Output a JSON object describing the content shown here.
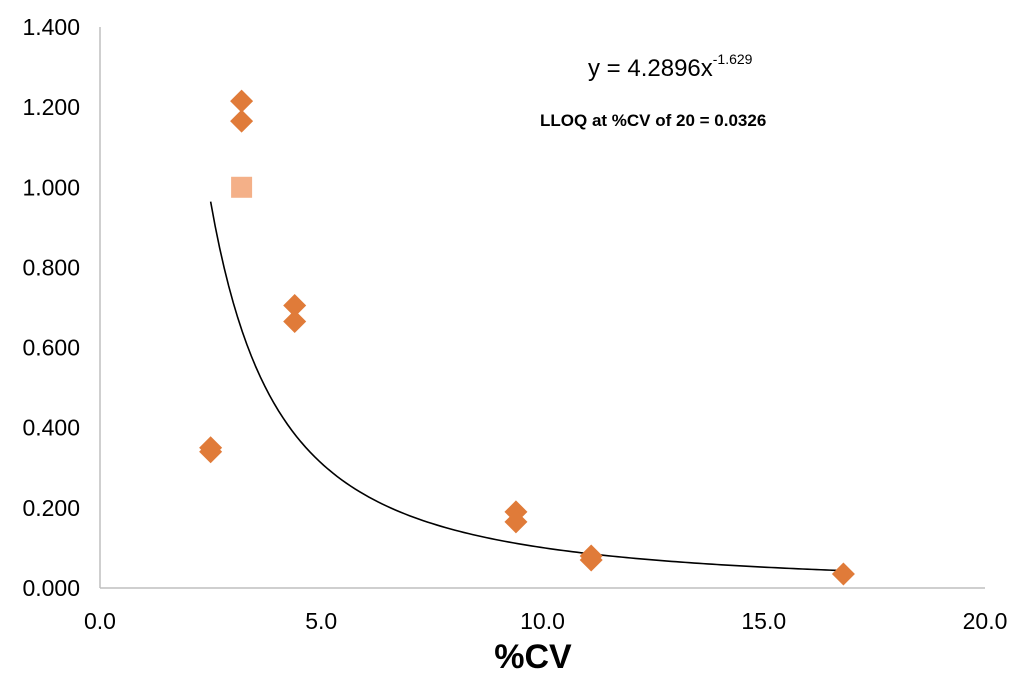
{
  "chart_data": {
    "type": "scatter",
    "title": "",
    "xlabel": "%CV",
    "ylabel": "",
    "xlim": [
      0,
      20
    ],
    "ylim": [
      0,
      1.4
    ],
    "x_ticks": [
      "0.0",
      "5.0",
      "10.0",
      "15.0",
      "20.0"
    ],
    "y_ticks": [
      "0.000",
      "0.200",
      "0.400",
      "0.600",
      "0.800",
      "1.000",
      "1.200",
      "1.400"
    ],
    "grid": false,
    "series": [
      {
        "marker": "diamond",
        "color": "#e07b39",
        "points": [
          {
            "x": 2.5,
            "y": 0.35
          },
          {
            "x": 2.5,
            "y": 0.34
          },
          {
            "x": 3.2,
            "y": 1.215
          },
          {
            "x": 3.2,
            "y": 1.165
          },
          {
            "x": 4.4,
            "y": 0.705
          },
          {
            "x": 4.4,
            "y": 0.665
          },
          {
            "x": 9.4,
            "y": 0.19
          },
          {
            "x": 9.4,
            "y": 0.165
          },
          {
            "x": 11.1,
            "y": 0.08
          },
          {
            "x": 11.1,
            "y": 0.07
          },
          {
            "x": 16.8,
            "y": 0.035
          }
        ]
      },
      {
        "marker": "square",
        "color": "#f4b088",
        "points": [
          {
            "x": 3.2,
            "y": 1.0
          }
        ]
      }
    ],
    "trendline": {
      "type": "power",
      "coefficient": 4.2896,
      "exponent": -1.629,
      "x_range": [
        2.5,
        16.8
      ],
      "color": "#000000"
    },
    "annotations": {
      "equation_base": "y = 4.2896x",
      "equation_exponent": "-1.629",
      "lloq": "LLOQ at %CV of 20 = 0.0326"
    }
  }
}
